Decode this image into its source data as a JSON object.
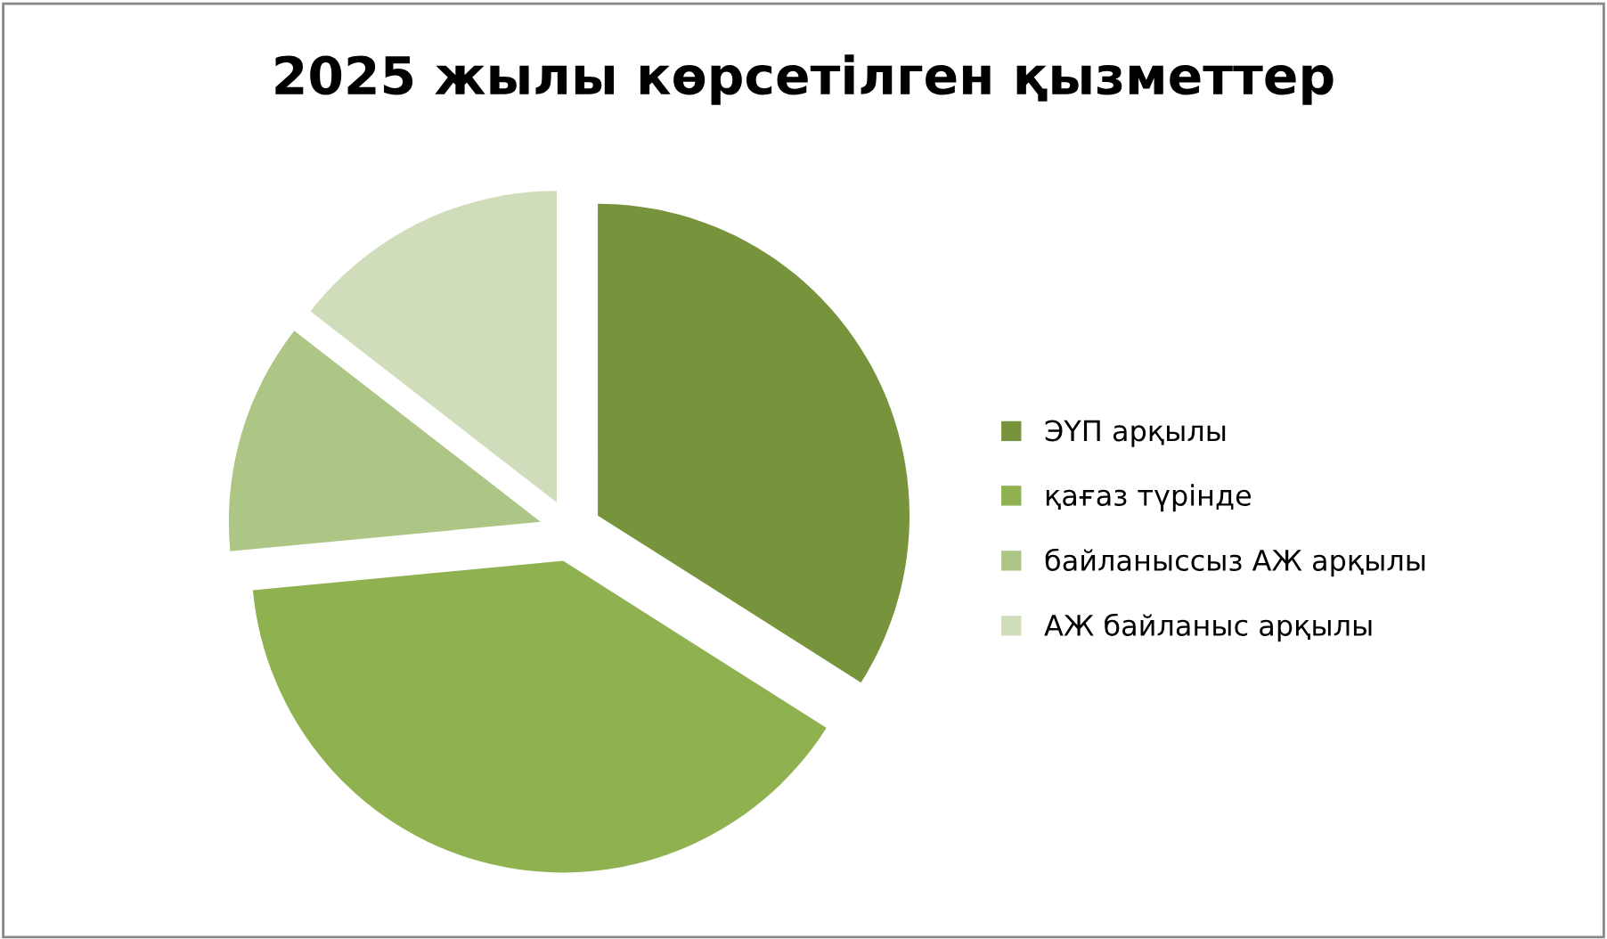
{
  "chart_data": {
    "type": "pie",
    "title": "2025 жылы көрсетілген қызметтер",
    "categories": [
      "ЭҮП арқылы",
      "қағаз түрінде",
      "байланыссыз АЖ арқылы",
      "АЖ байланыс арқылы"
    ],
    "values": [
      34,
      39.5,
      12,
      14.5
    ],
    "colors": [
      "#77933c",
      "#8fb150",
      "#adc585",
      "#d0ddba"
    ],
    "legend": "right"
  }
}
